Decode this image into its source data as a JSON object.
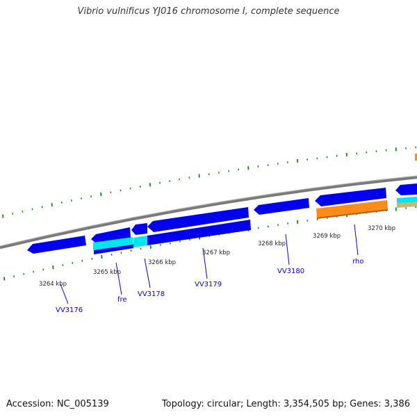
{
  "title": "Vibrio vulnificus YJ016 chromosome I, complete sequence",
  "footer": {
    "accession": "Accession: NC_005139",
    "summary": "Topology: circular; Length: 3,354,505 bp; Genes: 3,386"
  },
  "colors": {
    "forward_gene": "#0000ee",
    "reverse_gene": "#1414d8",
    "rho_gene": "#ff8c1a",
    "secondary_cyan": "#00e5ee",
    "secondary_tan": "#c8b878",
    "backbone": "#8a8a8a",
    "tick": "#118811",
    "gene_label": "#0000cc"
  },
  "ticks": [
    {
      "label": "3264 kbp"
    },
    {
      "label": "3265 kbp"
    },
    {
      "label": "3266 kbp"
    },
    {
      "label": "3267 kbp"
    },
    {
      "label": "3268 kbp"
    },
    {
      "label": "3269 kbp"
    },
    {
      "label": "3270 kbp"
    }
  ],
  "gene_labels": [
    {
      "name": "VV3176"
    },
    {
      "name": "fre"
    },
    {
      "name": "VV3178"
    },
    {
      "name": "VV3179"
    },
    {
      "name": "VV3180"
    },
    {
      "name": "rho"
    }
  ]
}
